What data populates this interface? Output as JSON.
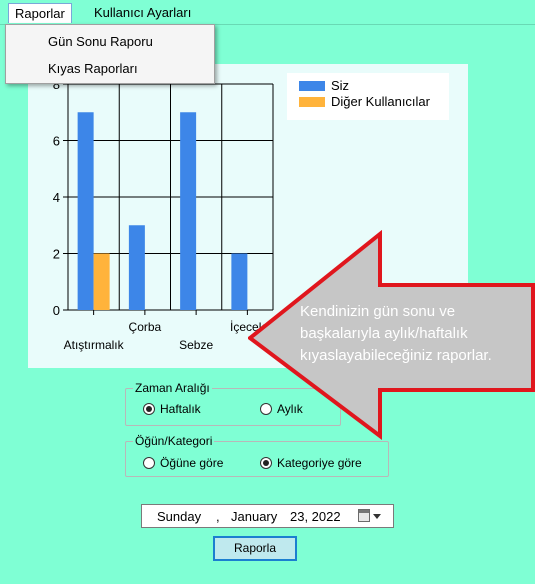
{
  "menu": {
    "items": [
      "Raporlar",
      "Kullanıcı Ayarları"
    ],
    "dropdown": [
      "Gün Sonu Raporu",
      "Kıyas Raporları"
    ]
  },
  "legend": {
    "series1": "Siz",
    "series2": "Diğer Kullanıcılar"
  },
  "colors": {
    "series1": "#3d86e8",
    "series2": "#ffb33b",
    "background": "#7fffd4",
    "chart_bg": "#e9fcfb",
    "callout": "#c6c6c6",
    "callout_border": "#e0161d"
  },
  "chart_data": {
    "type": "bar",
    "categories": [
      "Atıştırmalık",
      "Çorba",
      "Sebze",
      "İçecek"
    ],
    "series": [
      {
        "name": "Siz",
        "values": [
          7,
          3,
          7,
          2
        ]
      },
      {
        "name": "Diğer Kullanıcılar",
        "values": [
          2,
          0,
          0,
          0
        ]
      }
    ],
    "yticks": [
      "0",
      "2",
      "4",
      "6",
      "8"
    ],
    "ylim": [
      0,
      8
    ],
    "grid": true,
    "legend_position": "top-right"
  },
  "time_range": {
    "title": "Zaman Aralığı",
    "options": [
      "Haftalık",
      "Aylık"
    ],
    "selected": "Haftalık"
  },
  "meal_category": {
    "title": "Öğün/Kategori",
    "options": [
      "Öğüne göre",
      "Kategoriye göre"
    ],
    "selected": "Kategoriye göre"
  },
  "date": {
    "day": "Sunday",
    "sep": ",",
    "month": "January",
    "daynum": "23, 2022"
  },
  "button": {
    "label": "Raporla"
  },
  "callout": {
    "lines": [
      "Kendinizin gün sonu ve",
      "başkalarıyla aylık/haftalık",
      "kıyaslayabileceğiniz raporlar."
    ]
  }
}
